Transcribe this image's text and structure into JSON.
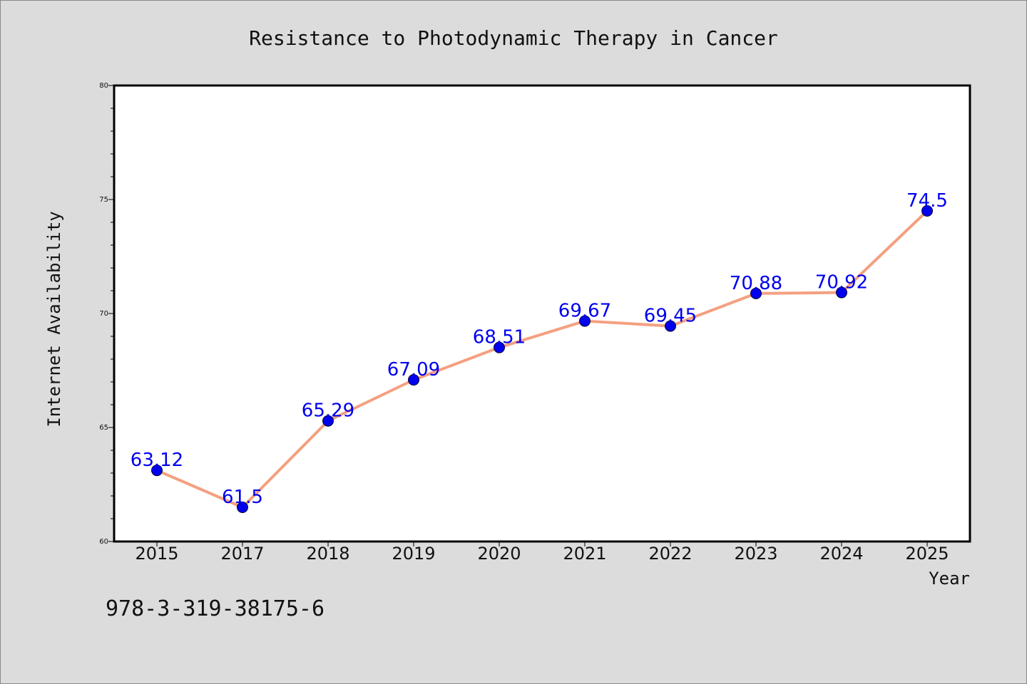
{
  "chart_data": {
    "type": "line",
    "title": "Resistance to Photodynamic Therapy in Cancer",
    "xlabel": "Year",
    "ylabel": "Internet Availability",
    "categories": [
      "2015",
      "2017",
      "2018",
      "2019",
      "2020",
      "2021",
      "2022",
      "2023",
      "2024",
      "2025"
    ],
    "series": [
      {
        "values": [
          63.12,
          61.5,
          65.29,
          67.09,
          68.51,
          69.67,
          69.45,
          70.88,
          70.92,
          74.5
        ],
        "labels": [
          "63.12",
          "61.5",
          "65.29",
          "67.09",
          "68.51",
          "69.67",
          "69.45",
          "70.88",
          "70.92",
          "74.5"
        ],
        "line_color": "#f4a080",
        "marker_color": "#0000ee"
      }
    ],
    "ylim": [
      60,
      80
    ],
    "yticks": [
      "60",
      "65",
      "70",
      "75",
      "80"
    ],
    "grid": false,
    "legend": "none"
  },
  "footer": {
    "isbn": "978-3-319-38175-6"
  },
  "colors": {
    "background": "#dcdcdc",
    "plot_area": "#ffffff",
    "line": "#f4a080",
    "marker": "#0000ee",
    "label": "#0000ee"
  }
}
